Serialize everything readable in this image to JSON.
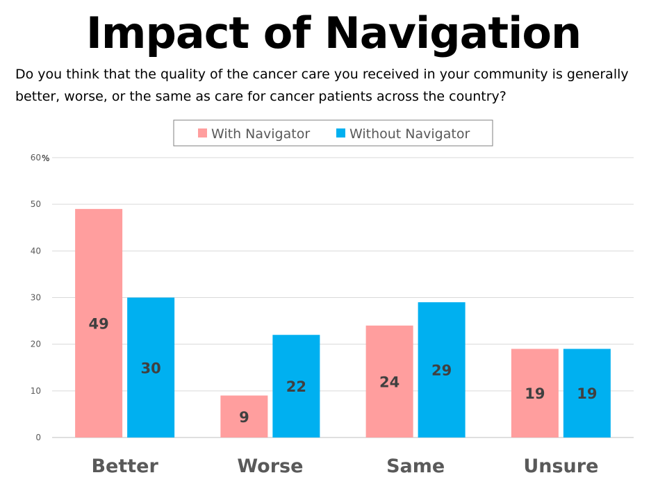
{
  "title": "Impact of Navigation",
  "question": "Do you think that the quality of the cancer care you received in your community is generally better, worse, or the same as care for cancer patients across the country?",
  "chart_data": {
    "type": "bar",
    "categories": [
      "Better",
      "Worse",
      "Same",
      "Unsure"
    ],
    "series": [
      {
        "name": "With Navigator",
        "values": [
          49,
          9,
          24,
          19
        ],
        "color": "#FF9E9E"
      },
      {
        "name": "Without Navigator",
        "values": [
          30,
          22,
          29,
          19
        ],
        "color": "#00B0F0"
      }
    ],
    "yticks": [
      "0",
      "10",
      "20",
      "30",
      "40",
      "50",
      "60"
    ],
    "yunit": "%",
    "ylim": [
      0,
      60
    ],
    "grid": true,
    "legend": "top-center"
  }
}
